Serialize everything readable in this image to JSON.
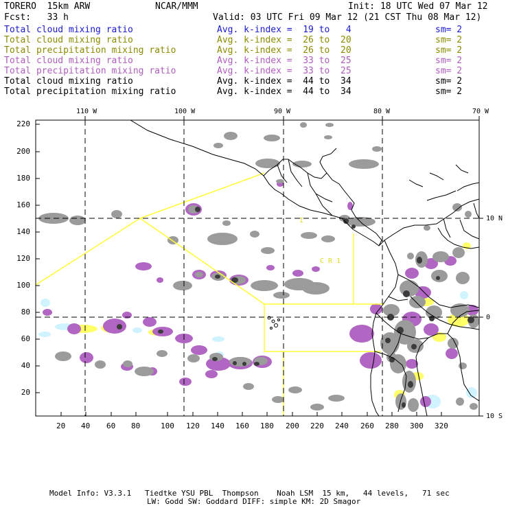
{
  "header": {
    "model": "TORERO  15km ARW",
    "center": "NCAR/MMM",
    "init": "Init: 18 UTC Wed 07 Mar 12",
    "fcst": "Fcst:   33 h",
    "valid": "Valid: 03 UTC Fri 09 Mar 12 (21 CST Thu 08 Mar 12)"
  },
  "legend": [
    {
      "field": "Total cloud mixing ratio",
      "index": "Avg. k-index =  19 to   4",
      "sm": "sm= 2",
      "color": "#1a1acd"
    },
    {
      "field": "Total cloud mixing ratio",
      "index": "Avg. k-index =  26 to  20",
      "sm": "sm= 2",
      "color": "#8b8b00"
    },
    {
      "field": "Total precipitation mixing ratio",
      "index": "Avg. k-index =  26 to  20",
      "sm": "sm= 2",
      "color": "#8b8b00"
    },
    {
      "field": "Total cloud mixing ratio",
      "index": "Avg. k-index =  33 to  25",
      "sm": "sm= 2",
      "color": "#b05cc0"
    },
    {
      "field": "Total precipitation mixing ratio",
      "index": "Avg. k-index =  33 to  25",
      "sm": "sm= 2",
      "color": "#b05cc0"
    },
    {
      "field": "Total cloud mixing ratio",
      "index": "Avg. k-index =  44 to  34",
      "sm": "sm= 2",
      "color": "#000000"
    },
    {
      "field": "Total precipitation mixing ratio",
      "index": "Avg. k-index =  44 to  34",
      "sm": "sm= 2",
      "color": "#000000"
    }
  ],
  "map": {
    "x_ticks": [
      "20",
      "40",
      "60",
      "80",
      "100",
      "120",
      "140",
      "160",
      "180",
      "200",
      "220",
      "240",
      "260",
      "280",
      "300",
      "320"
    ],
    "y_ticks": [
      "220",
      "200",
      "180",
      "160",
      "140",
      "120",
      "100",
      "80",
      "60",
      "40",
      "20"
    ],
    "lon_labels": [
      "110 W",
      "100 W",
      "90 W",
      "80 W",
      "70 W"
    ],
    "lat_labels": [
      "10 N",
      "0",
      "10 S"
    ],
    "annotation": "C R 1",
    "annotation_i": "I",
    "colors": {
      "gray": "#9b9b9b",
      "dark": "#3c3c3c",
      "purple": "#b066c2",
      "yellow": "#ffff66",
      "cyan": "#cff3ff",
      "boundary": "#ffff33"
    }
  },
  "footer": {
    "line1": "Model Info: V3.3.1   Tiedtke YSU PBL  Thompson    Noah LSM  15 km,   44 levels,   71 sec",
    "line2": "LW: Godd SW: Goddard DIFF: simple KM: 2D Smagor"
  }
}
